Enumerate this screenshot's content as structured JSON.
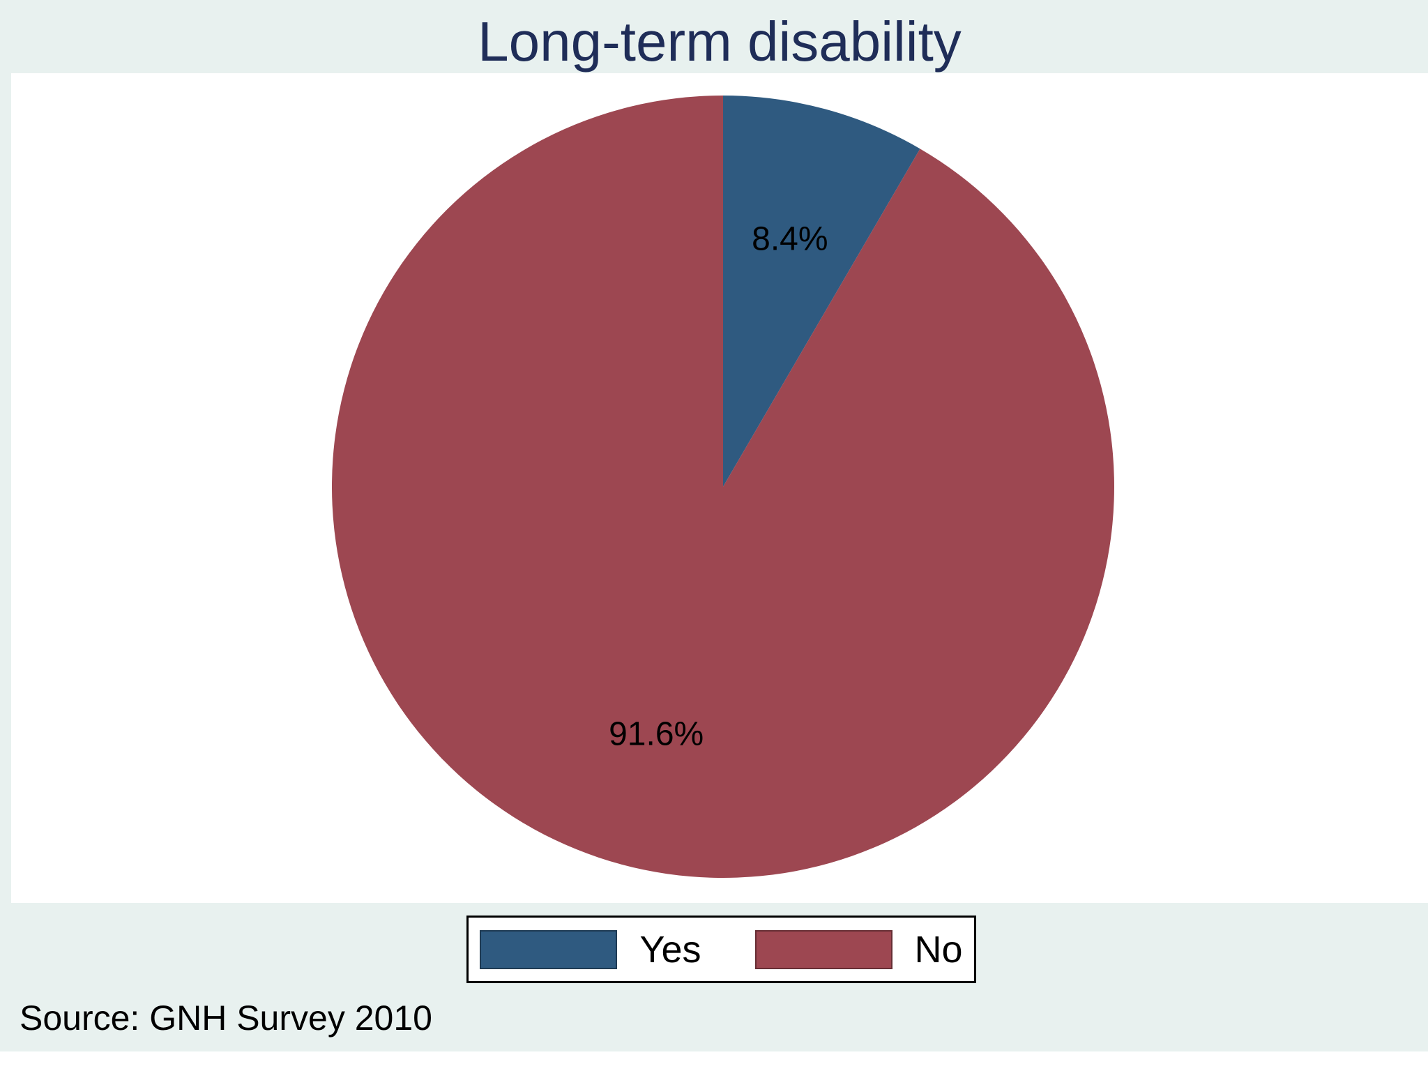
{
  "source_note": "Source: GNH Survey 2010",
  "colors": {
    "page_background": "#e8f1ef",
    "plot_background": "#ffffff",
    "title_text": "#1f2d58",
    "label_text": "#000000",
    "legend_border": "#000000"
  },
  "chart_data": {
    "type": "pie",
    "title": "Long-term disability",
    "slices": [
      {
        "label": "Yes",
        "value": 8.4,
        "display": "8.4%",
        "color": "#2f5a80"
      },
      {
        "label": "No",
        "value": 91.6,
        "display": "91.6%",
        "color": "#9d4751"
      }
    ],
    "start_angle": "top",
    "direction": "clockwise",
    "label_format": "percent",
    "label_radius_fraction": 0.655,
    "legend_position": "bottom"
  },
  "legend": {
    "items": [
      {
        "label": "Yes",
        "color": "#2f5a80"
      },
      {
        "label": "No",
        "color": "#9d4751"
      }
    ]
  }
}
